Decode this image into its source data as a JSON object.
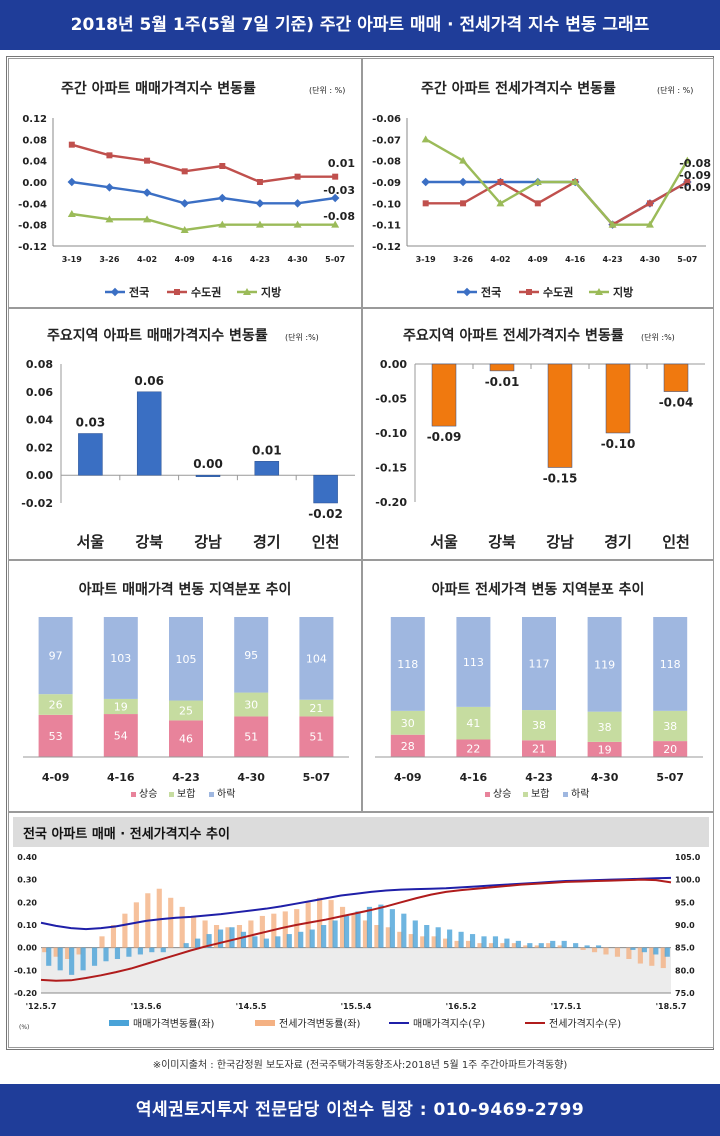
{
  "header": {
    "title": "2018년 5월 1주(5월 7일 기준) 주간 아파트 매매 · 전세가격 지수 변동 그래프"
  },
  "footer": {
    "contact": "역세권토지투자 전문담당 이천수 팀장 : 010-9469-2799"
  },
  "source": {
    "text": "※이미지출처 : 한국감정원 보도자료 (전국주택가격동향조사:2018년 5월 1주 주간아파트가격동향)"
  },
  "colors": {
    "national": "#3b6fc4",
    "capital": "#c0504d",
    "local": "#9bbb59",
    "bar_blue": "#3a6fc3",
    "bar_orange": "#f0790f",
    "rise": "#e8839b",
    "flat": "#c6dca0",
    "fall": "#9fb7e0"
  },
  "chart_data": [
    {
      "type": "line",
      "title": "주간 아파트 매매가격지수 변동률",
      "unit_note": "(단위 : %)",
      "categories": [
        "3-19",
        "3-26",
        "4-02",
        "4-09",
        "4-16",
        "4-23",
        "4-30",
        "5-07"
      ],
      "ylim": [
        -0.12,
        0.12
      ],
      "yticks": [
        "0.12",
        "0.08",
        "0.04",
        "0.00",
        "-0.04",
        "-0.08",
        "-0.12"
      ],
      "series": [
        {
          "name": "전국",
          "values": [
            0.0,
            -0.01,
            -0.02,
            -0.04,
            -0.03,
            -0.04,
            -0.04,
            -0.03
          ]
        },
        {
          "name": "수도권",
          "values": [
            0.07,
            0.05,
            0.04,
            0.02,
            0.03,
            0.0,
            0.01,
            0.01
          ]
        },
        {
          "name": "지방",
          "values": [
            -0.06,
            -0.07,
            -0.07,
            -0.09,
            -0.08,
            -0.08,
            -0.08,
            -0.08
          ]
        }
      ],
      "labels": [
        "0.01",
        "-0.03",
        "-0.08"
      ],
      "legend": "bottom"
    },
    {
      "type": "line",
      "title": "주간 아파트 전세가격지수 변동률",
      "unit_note": "(단위 : %)",
      "categories": [
        "3-19",
        "3-26",
        "4-02",
        "4-09",
        "4-16",
        "4-23",
        "4-30",
        "5-07"
      ],
      "ylim": [
        -0.12,
        -0.06
      ],
      "yticks": [
        "-0.06",
        "-0.07",
        "-0.08",
        "-0.09",
        "-0.10",
        "-0.11",
        "-0.12"
      ],
      "series": [
        {
          "name": "전국",
          "values": [
            -0.09,
            -0.09,
            -0.09,
            -0.09,
            -0.09,
            -0.11,
            -0.1,
            -0.09
          ]
        },
        {
          "name": "수도권",
          "values": [
            -0.1,
            -0.1,
            -0.09,
            -0.1,
            -0.09,
            -0.11,
            -0.1,
            -0.09
          ]
        },
        {
          "name": "지방",
          "values": [
            -0.07,
            -0.08,
            -0.1,
            -0.09,
            -0.09,
            -0.11,
            -0.11,
            -0.08
          ]
        }
      ],
      "labels": [
        "-0.08",
        "-0.09",
        "-0.09"
      ],
      "legend": "bottom"
    },
    {
      "type": "bar",
      "title": "주요지역 아파트 매매가격지수 변동률",
      "unit_note": "(단위 :%)",
      "categories": [
        "서울",
        "강북",
        "강남",
        "경기",
        "인천"
      ],
      "values": [
        0.03,
        0.06,
        0.0,
        0.01,
        -0.02
      ],
      "value_labels": [
        "0.03",
        "0.06",
        "0.00",
        "0.01",
        "-0.02"
      ],
      "ylim": [
        -0.02,
        0.08
      ],
      "yticks": [
        "0.08",
        "0.06",
        "0.04",
        "0.02",
        "0.00",
        "-0.02"
      ]
    },
    {
      "type": "bar",
      "title": "주요지역 아파트 전세가격지수 변동률",
      "unit_note": "(단위 :%)",
      "categories": [
        "서울",
        "강북",
        "강남",
        "경기",
        "인천"
      ],
      "values": [
        -0.09,
        -0.01,
        -0.15,
        -0.1,
        -0.04
      ],
      "value_labels": [
        "-0.09",
        "-0.01",
        "-0.15",
        "-0.10",
        "-0.04"
      ],
      "ylim": [
        -0.2,
        0.0
      ],
      "yticks": [
        "0.00",
        "-0.05",
        "-0.10",
        "-0.15",
        "-0.20"
      ]
    },
    {
      "type": "bar",
      "title": "아파트 매매가격 변동 지역분포 추이",
      "categories": [
        "4-09",
        "4-16",
        "4-23",
        "4-30",
        "5-07"
      ],
      "series": [
        {
          "name": "상승",
          "values": [
            53,
            54,
            46,
            51,
            51
          ]
        },
        {
          "name": "보합",
          "values": [
            26,
            19,
            25,
            30,
            21
          ]
        },
        {
          "name": "하락",
          "values": [
            97,
            103,
            105,
            95,
            104
          ]
        }
      ],
      "legend": "bottom"
    },
    {
      "type": "bar",
      "title": "아파트 전세가격 변동 지역분포 추이",
      "categories": [
        "4-09",
        "4-16",
        "4-23",
        "4-30",
        "5-07"
      ],
      "series": [
        {
          "name": "상승",
          "values": [
            28,
            22,
            21,
            19,
            20
          ]
        },
        {
          "name": "보합",
          "values": [
            30,
            41,
            38,
            38,
            38
          ]
        },
        {
          "name": "하락",
          "values": [
            118,
            113,
            117,
            119,
            118
          ]
        }
      ],
      "legend": "bottom"
    },
    {
      "type": "line",
      "title": "전국 아파트 매매 · 전세가격지수 추이",
      "x_labels": [
        "'12.5.7",
        "'13.5.6",
        "'14.5.5",
        "'15.5.4",
        "'16.5.2",
        "'17.5.1",
        "'18.5.7"
      ],
      "y_left_ticks": [
        "0.40",
        "0.30",
        "0.20",
        "0.10",
        "0.00",
        "-0.10",
        "-0.20"
      ],
      "y_right_ticks": [
        "105.0",
        "100.0",
        "95.0",
        "90.0",
        "85.0",
        "80.0",
        "75.0"
      ],
      "ylim_left": [
        -0.2,
        0.4
      ],
      "ylim_right": [
        75,
        105
      ],
      "unit_note": "(%)",
      "series": [
        {
          "name": "매매가격변동률(좌)",
          "axis": "left",
          "color": "#4aa3d8",
          "values": [
            -0.08,
            -0.1,
            -0.12,
            -0.1,
            -0.08,
            -0.06,
            -0.05,
            -0.04,
            -0.03,
            -0.02,
            -0.02,
            0.0,
            0.02,
            0.04,
            0.06,
            0.08,
            0.09,
            0.07,
            0.05,
            0.04,
            0.05,
            0.06,
            0.07,
            0.08,
            0.1,
            0.12,
            0.14,
            0.16,
            0.18,
            0.19,
            0.17,
            0.15,
            0.12,
            0.1,
            0.09,
            0.08,
            0.07,
            0.06,
            0.05,
            0.05,
            0.04,
            0.03,
            0.02,
            0.02,
            0.03,
            0.03,
            0.02,
            0.01,
            0.01,
            0.0,
            0.0,
            -0.01,
            -0.02,
            -0.03,
            -0.04
          ]
        },
        {
          "name": "전세가격변동률(좌)",
          "axis": "left",
          "color": "#f4b183",
          "values": [
            -0.02,
            -0.04,
            -0.05,
            -0.03,
            0.0,
            0.05,
            0.1,
            0.15,
            0.2,
            0.24,
            0.26,
            0.22,
            0.18,
            0.14,
            0.12,
            0.1,
            0.09,
            0.1,
            0.12,
            0.14,
            0.15,
            0.16,
            0.17,
            0.2,
            0.22,
            0.21,
            0.18,
            0.15,
            0.12,
            0.1,
            0.09,
            0.07,
            0.06,
            0.05,
            0.05,
            0.04,
            0.03,
            0.03,
            0.02,
            0.02,
            0.02,
            0.02,
            0.01,
            0.01,
            0.02,
            0.01,
            0.0,
            -0.01,
            -0.02,
            -0.03,
            -0.04,
            -0.05,
            -0.07,
            -0.08,
            -0.09
          ]
        },
        {
          "name": "매매가격지수(우)",
          "axis": "right",
          "color": "#1f1fa8",
          "values": [
            90.5,
            89.8,
            89.3,
            89.1,
            89.3,
            89.7,
            90.3,
            90.9,
            91.3,
            91.6,
            91.8,
            92.1,
            92.4,
            92.8,
            93.2,
            93.6,
            94.1,
            94.7,
            95.3,
            95.9,
            96.5,
            96.9,
            97.3,
            97.6,
            97.8,
            97.9,
            98.0,
            98.1,
            98.3,
            98.5,
            98.7,
            98.9,
            99.1,
            99.3,
            99.5,
            99.7,
            99.8,
            99.9,
            100.0,
            100.1,
            100.2,
            100.3,
            100.4
          ]
        },
        {
          "name": "전세가격지수(우)",
          "axis": "right",
          "color": "#b01c1c",
          "values": [
            77.9,
            77.7,
            77.8,
            78.3,
            78.9,
            79.6,
            80.4,
            81.4,
            82.4,
            83.4,
            84.4,
            85.3,
            86.1,
            86.9,
            87.7,
            88.5,
            89.3,
            90.0,
            90.6,
            91.2,
            91.9,
            92.6,
            93.3,
            94.1,
            95.0,
            95.9,
            96.7,
            97.3,
            97.7,
            98.0,
            98.3,
            98.6,
            98.9,
            99.1,
            99.3,
            99.5,
            99.6,
            99.7,
            99.8,
            99.9,
            100.0,
            99.9,
            99.4
          ]
        }
      ],
      "legend": "bottom"
    }
  ]
}
